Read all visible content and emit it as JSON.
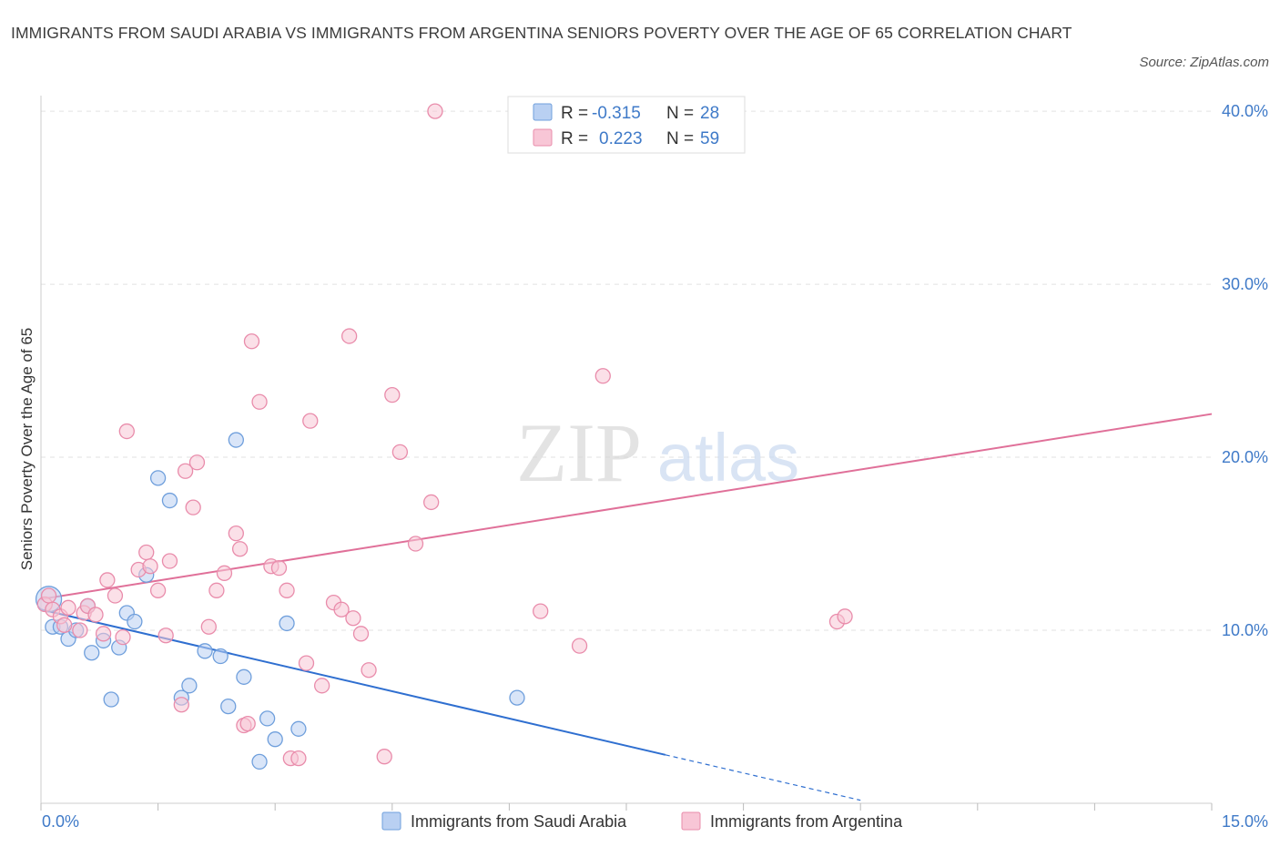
{
  "chart_data": {
    "type": "scatter",
    "title": "IMMIGRANTS FROM SAUDI ARABIA VS IMMIGRANTS FROM ARGENTINA SENIORS POVERTY OVER THE AGE OF 65 CORRELATION CHART",
    "source": "Source: ZipAtlas.com",
    "ylabel": "Seniors Poverty Over the Age of 65",
    "xlim": [
      0,
      15
    ],
    "ylim": [
      0,
      40.9
    ],
    "x_tick_labels": [
      "0.0%",
      "15.0%"
    ],
    "y_ticks": [
      10,
      20,
      30,
      40
    ],
    "y_tick_labels": [
      "10.0%",
      "20.0%",
      "30.0%",
      "40.0%"
    ],
    "watermark": {
      "zip": "ZIP",
      "atlas": "atlas"
    },
    "legend": {
      "r_label": "R =",
      "n_label": "N =",
      "entries": [
        {
          "r": "-0.315",
          "n": "28"
        },
        {
          "r": "0.223",
          "n": "59"
        }
      ]
    },
    "series": [
      {
        "name": "Immigrants from Saudi Arabia",
        "color": "#6f9fdc",
        "fill": "#b9d0f2",
        "line_color": "#2f6fd0",
        "trend": {
          "x0": 0,
          "y0": 11.2,
          "x1": 8.0,
          "y1": 2.8,
          "dash_to_x": 10.5
        },
        "points": [
          [
            0.1,
            11.8
          ],
          [
            0.15,
            10.2
          ],
          [
            0.25,
            10.2
          ],
          [
            0.35,
            9.5
          ],
          [
            0.45,
            10.0
          ],
          [
            0.6,
            11.4
          ],
          [
            0.65,
            8.7
          ],
          [
            0.8,
            9.4
          ],
          [
            0.9,
            6.0
          ],
          [
            1.0,
            9.0
          ],
          [
            1.1,
            11.0
          ],
          [
            1.2,
            10.5
          ],
          [
            1.35,
            13.2
          ],
          [
            1.5,
            18.8
          ],
          [
            1.65,
            17.5
          ],
          [
            1.8,
            6.1
          ],
          [
            1.9,
            6.8
          ],
          [
            2.1,
            8.8
          ],
          [
            2.3,
            8.5
          ],
          [
            2.4,
            5.6
          ],
          [
            2.5,
            21.0
          ],
          [
            2.6,
            7.3
          ],
          [
            2.8,
            2.4
          ],
          [
            2.9,
            4.9
          ],
          [
            3.0,
            3.7
          ],
          [
            3.15,
            10.4
          ],
          [
            3.3,
            4.3
          ],
          [
            6.1,
            6.1
          ]
        ]
      },
      {
        "name": "Immigrants from Argentina",
        "color": "#e98cab",
        "fill": "#f8c6d6",
        "line_color": "#e07099",
        "trend": {
          "x0": 0,
          "y0": 11.8,
          "x1": 15,
          "y1": 22.5
        },
        "points": [
          [
            0.05,
            11.5
          ],
          [
            0.1,
            12.0
          ],
          [
            0.15,
            11.2
          ],
          [
            0.25,
            10.8
          ],
          [
            0.3,
            10.3
          ],
          [
            0.35,
            11.3
          ],
          [
            0.5,
            10.0
          ],
          [
            0.55,
            11.0
          ],
          [
            0.6,
            11.4
          ],
          [
            0.7,
            10.9
          ],
          [
            0.8,
            9.8
          ],
          [
            0.85,
            12.9
          ],
          [
            0.95,
            12.0
          ],
          [
            1.05,
            9.6
          ],
          [
            1.1,
            21.5
          ],
          [
            1.25,
            13.5
          ],
          [
            1.35,
            14.5
          ],
          [
            1.4,
            13.7
          ],
          [
            1.5,
            12.3
          ],
          [
            1.6,
            9.7
          ],
          [
            1.65,
            14.0
          ],
          [
            1.8,
            5.7
          ],
          [
            1.85,
            19.2
          ],
          [
            1.95,
            17.1
          ],
          [
            2.0,
            19.7
          ],
          [
            2.15,
            10.2
          ],
          [
            2.25,
            12.3
          ],
          [
            2.35,
            13.3
          ],
          [
            2.5,
            15.6
          ],
          [
            2.55,
            14.7
          ],
          [
            2.6,
            4.5
          ],
          [
            2.65,
            4.6
          ],
          [
            2.7,
            26.7
          ],
          [
            2.8,
            23.2
          ],
          [
            2.95,
            13.7
          ],
          [
            3.05,
            13.6
          ],
          [
            3.15,
            12.3
          ],
          [
            3.2,
            2.6
          ],
          [
            3.3,
            2.6
          ],
          [
            3.4,
            8.1
          ],
          [
            3.45,
            22.1
          ],
          [
            3.6,
            6.8
          ],
          [
            3.75,
            11.6
          ],
          [
            3.85,
            11.2
          ],
          [
            3.95,
            27.0
          ],
          [
            4.0,
            10.7
          ],
          [
            4.1,
            9.8
          ],
          [
            4.2,
            7.7
          ],
          [
            4.4,
            2.7
          ],
          [
            4.5,
            23.6
          ],
          [
            4.6,
            20.3
          ],
          [
            4.8,
            15.0
          ],
          [
            5.0,
            17.4
          ],
          [
            5.05,
            40.0
          ],
          [
            6.4,
            11.1
          ],
          [
            6.9,
            9.1
          ],
          [
            7.2,
            24.7
          ],
          [
            10.2,
            10.5
          ],
          [
            10.3,
            10.8
          ]
        ]
      }
    ]
  }
}
